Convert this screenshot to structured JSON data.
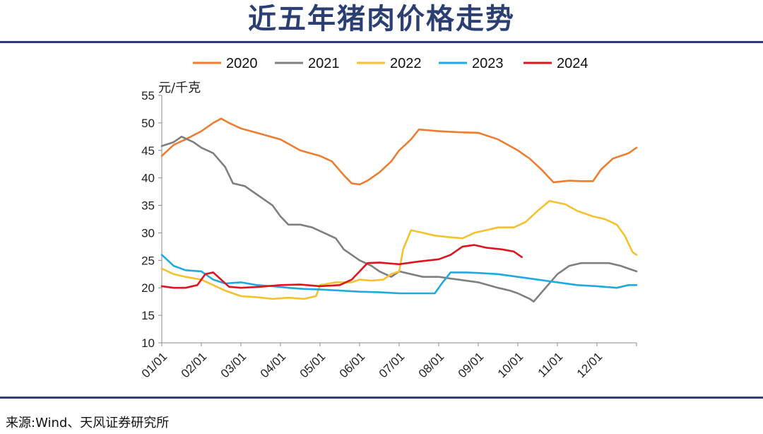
{
  "title": "近五年猪肉价格走势",
  "source": "来源:Wind、天风证券研究所",
  "chart_data": {
    "type": "line",
    "title": "近五年猪肉价格走势",
    "ylabel": "元/千克",
    "xlabel": "",
    "ylim": [
      10,
      55
    ],
    "yticks": [
      10,
      15,
      20,
      25,
      30,
      35,
      40,
      45,
      50,
      55
    ],
    "xlim": [
      0,
      12
    ],
    "xticks": [
      {
        "label": "01/01",
        "value": 0
      },
      {
        "label": "02/01",
        "value": 1
      },
      {
        "label": "03/01",
        "value": 2
      },
      {
        "label": "04/01",
        "value": 3
      },
      {
        "label": "05/01",
        "value": 4
      },
      {
        "label": "06/01",
        "value": 5
      },
      {
        "label": "07/01",
        "value": 6
      },
      {
        "label": "08/01",
        "value": 7
      },
      {
        "label": "09/01",
        "value": 8
      },
      {
        "label": "10/01",
        "value": 9
      },
      {
        "label": "11/01",
        "value": 10
      },
      {
        "label": "12/01",
        "value": 11
      }
    ],
    "legend_position": "top",
    "grid": false,
    "series": [
      {
        "name": "2020",
        "color": "#ed7d31",
        "points": [
          [
            0.0,
            44.0
          ],
          [
            0.3,
            46.0
          ],
          [
            0.6,
            47.0
          ],
          [
            1.0,
            48.5
          ],
          [
            1.3,
            50.0
          ],
          [
            1.5,
            50.8
          ],
          [
            1.7,
            50.0
          ],
          [
            2.0,
            49.0
          ],
          [
            2.5,
            48.0
          ],
          [
            3.0,
            47.0
          ],
          [
            3.5,
            45.0
          ],
          [
            4.0,
            44.0
          ],
          [
            4.3,
            43.0
          ],
          [
            4.6,
            40.5
          ],
          [
            4.8,
            39.0
          ],
          [
            5.0,
            38.8
          ],
          [
            5.2,
            39.5
          ],
          [
            5.5,
            41.0
          ],
          [
            5.8,
            43.0
          ],
          [
            6.0,
            45.0
          ],
          [
            6.3,
            47.0
          ],
          [
            6.5,
            48.8
          ],
          [
            7.0,
            48.5
          ],
          [
            7.5,
            48.3
          ],
          [
            8.0,
            48.2
          ],
          [
            8.5,
            47.0
          ],
          [
            9.0,
            45.0
          ],
          [
            9.3,
            43.5
          ],
          [
            9.6,
            41.5
          ],
          [
            9.9,
            39.2
          ],
          [
            10.3,
            39.5
          ],
          [
            10.6,
            39.4
          ],
          [
            10.9,
            39.4
          ],
          [
            11.1,
            41.5
          ],
          [
            11.4,
            43.5
          ],
          [
            11.8,
            44.5
          ],
          [
            12.0,
            45.5
          ]
        ]
      },
      {
        "name": "2021",
        "color": "#7f7f7f",
        "points": [
          [
            0.0,
            45.8
          ],
          [
            0.3,
            46.5
          ],
          [
            0.5,
            47.5
          ],
          [
            0.8,
            46.5
          ],
          [
            1.0,
            45.5
          ],
          [
            1.3,
            44.5
          ],
          [
            1.6,
            42.0
          ],
          [
            1.8,
            39.0
          ],
          [
            2.1,
            38.5
          ],
          [
            2.4,
            37.0
          ],
          [
            2.8,
            35.0
          ],
          [
            3.0,
            33.0
          ],
          [
            3.2,
            31.5
          ],
          [
            3.5,
            31.5
          ],
          [
            3.8,
            31.0
          ],
          [
            4.1,
            30.0
          ],
          [
            4.4,
            29.0
          ],
          [
            4.6,
            27.0
          ],
          [
            4.8,
            26.0
          ],
          [
            5.0,
            25.0
          ],
          [
            5.3,
            24.0
          ],
          [
            5.5,
            23.0
          ],
          [
            5.8,
            22.0
          ],
          [
            6.0,
            23.0
          ],
          [
            6.3,
            22.5
          ],
          [
            6.6,
            22.0
          ],
          [
            7.0,
            22.0
          ],
          [
            7.5,
            21.5
          ],
          [
            8.0,
            21.0
          ],
          [
            8.5,
            20.0
          ],
          [
            8.8,
            19.5
          ],
          [
            9.0,
            19.0
          ],
          [
            9.3,
            18.0
          ],
          [
            9.4,
            17.5
          ],
          [
            9.7,
            20.0
          ],
          [
            10.0,
            22.5
          ],
          [
            10.3,
            24.0
          ],
          [
            10.6,
            24.5
          ],
          [
            11.0,
            24.5
          ],
          [
            11.3,
            24.5
          ],
          [
            11.6,
            24.0
          ],
          [
            12.0,
            23.0
          ]
        ]
      },
      {
        "name": "2022",
        "color": "#f5c12e",
        "points": [
          [
            0.0,
            23.5
          ],
          [
            0.3,
            22.5
          ],
          [
            0.6,
            22.0
          ],
          [
            1.0,
            21.5
          ],
          [
            1.3,
            20.5
          ],
          [
            1.6,
            19.5
          ],
          [
            2.0,
            18.5
          ],
          [
            2.4,
            18.3
          ],
          [
            2.8,
            18.0
          ],
          [
            3.2,
            18.2
          ],
          [
            3.6,
            18.0
          ],
          [
            3.9,
            18.5
          ],
          [
            4.0,
            20.5
          ],
          [
            4.4,
            21.0
          ],
          [
            4.8,
            21.0
          ],
          [
            5.0,
            21.5
          ],
          [
            5.3,
            21.3
          ],
          [
            5.6,
            21.5
          ],
          [
            5.8,
            22.5
          ],
          [
            6.0,
            23.0
          ],
          [
            6.1,
            27.0
          ],
          [
            6.3,
            30.5
          ],
          [
            6.6,
            30.0
          ],
          [
            6.9,
            29.5
          ],
          [
            7.3,
            29.2
          ],
          [
            7.6,
            29.0
          ],
          [
            7.9,
            30.0
          ],
          [
            8.2,
            30.5
          ],
          [
            8.5,
            31.0
          ],
          [
            8.9,
            31.0
          ],
          [
            9.2,
            32.0
          ],
          [
            9.5,
            34.0
          ],
          [
            9.8,
            35.8
          ],
          [
            10.2,
            35.2
          ],
          [
            10.5,
            34.0
          ],
          [
            10.9,
            33.0
          ],
          [
            11.2,
            32.5
          ],
          [
            11.5,
            31.5
          ],
          [
            11.7,
            29.5
          ],
          [
            11.9,
            26.5
          ],
          [
            12.0,
            26.0
          ]
        ]
      },
      {
        "name": "2023",
        "color": "#1ea9e1",
        "points": [
          [
            0.0,
            26.0
          ],
          [
            0.3,
            24.0
          ],
          [
            0.6,
            23.2
          ],
          [
            1.0,
            23.0
          ],
          [
            1.3,
            21.5
          ],
          [
            1.6,
            20.8
          ],
          [
            2.0,
            21.0
          ],
          [
            2.4,
            20.5
          ],
          [
            2.8,
            20.3
          ],
          [
            3.2,
            20.0
          ],
          [
            3.6,
            19.8
          ],
          [
            4.0,
            19.7
          ],
          [
            4.5,
            19.5
          ],
          [
            5.0,
            19.3
          ],
          [
            5.5,
            19.2
          ],
          [
            6.0,
            19.0
          ],
          [
            6.5,
            19.0
          ],
          [
            6.9,
            19.0
          ],
          [
            7.1,
            21.0
          ],
          [
            7.3,
            22.8
          ],
          [
            7.7,
            22.8
          ],
          [
            8.0,
            22.7
          ],
          [
            8.5,
            22.5
          ],
          [
            9.0,
            22.0
          ],
          [
            9.5,
            21.5
          ],
          [
            10.0,
            21.0
          ],
          [
            10.5,
            20.5
          ],
          [
            11.0,
            20.3
          ],
          [
            11.5,
            20.0
          ],
          [
            11.8,
            20.5
          ],
          [
            12.0,
            20.5
          ]
        ]
      },
      {
        "name": "2024",
        "color": "#e0141e",
        "points": [
          [
            0.0,
            20.3
          ],
          [
            0.3,
            20.0
          ],
          [
            0.6,
            20.0
          ],
          [
            0.9,
            20.5
          ],
          [
            1.1,
            22.5
          ],
          [
            1.3,
            22.8
          ],
          [
            1.5,
            21.5
          ],
          [
            1.7,
            20.2
          ],
          [
            2.0,
            20.0
          ],
          [
            2.5,
            20.2
          ],
          [
            3.0,
            20.5
          ],
          [
            3.5,
            20.6
          ],
          [
            4.0,
            20.3
          ],
          [
            4.5,
            20.5
          ],
          [
            4.8,
            21.5
          ],
          [
            5.0,
            23.0
          ],
          [
            5.2,
            24.5
          ],
          [
            5.5,
            24.6
          ],
          [
            6.0,
            24.3
          ],
          [
            6.5,
            24.8
          ],
          [
            7.0,
            25.2
          ],
          [
            7.3,
            26.0
          ],
          [
            7.6,
            27.5
          ],
          [
            7.9,
            27.8
          ],
          [
            8.2,
            27.3
          ],
          [
            8.6,
            27.0
          ],
          [
            8.9,
            26.6
          ],
          [
            9.1,
            25.6
          ]
        ]
      }
    ]
  }
}
